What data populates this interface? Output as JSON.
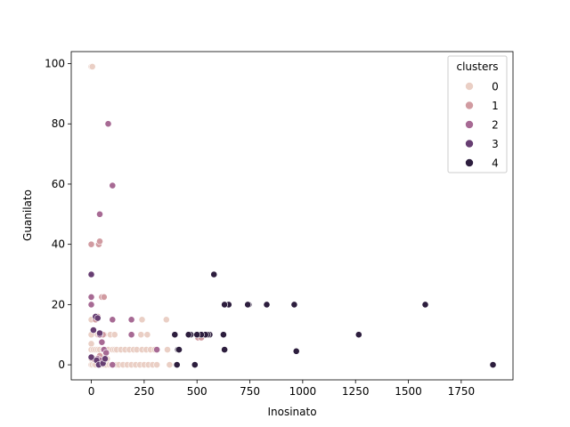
{
  "chart_data": {
    "type": "scatter",
    "title": "",
    "xlabel": "Inosinato",
    "ylabel": "Guanilato",
    "xlim": [
      -95,
      1995
    ],
    "ylim": [
      -5,
      104
    ],
    "xticks": [
      0,
      250,
      500,
      750,
      1000,
      1250,
      1500,
      1750
    ],
    "yticks": [
      0,
      20,
      40,
      60,
      80,
      100
    ],
    "grid": false,
    "legend": {
      "title": "clusters",
      "position": "top-right",
      "labels": [
        "0",
        "1",
        "2",
        "3",
        "4"
      ]
    },
    "series": [
      {
        "name": "0",
        "color": "#eacfc5",
        "points": [
          [
            0,
            99
          ],
          [
            5,
            99
          ],
          [
            0,
            15
          ],
          [
            0,
            10
          ],
          [
            0,
            7
          ],
          [
            0,
            5
          ],
          [
            0,
            2
          ],
          [
            0,
            0
          ],
          [
            5,
            0
          ],
          [
            10,
            2
          ],
          [
            10,
            5
          ],
          [
            15,
            0
          ],
          [
            20,
            5
          ],
          [
            20,
            0
          ],
          [
            25,
            2
          ],
          [
            30,
            5
          ],
          [
            30,
            10
          ],
          [
            35,
            0
          ],
          [
            40,
            5
          ],
          [
            45,
            0
          ],
          [
            50,
            3
          ],
          [
            55,
            5
          ],
          [
            60,
            10
          ],
          [
            60,
            0
          ],
          [
            65,
            5
          ],
          [
            70,
            0
          ],
          [
            75,
            2
          ],
          [
            80,
            5
          ],
          [
            85,
            0
          ],
          [
            90,
            10
          ],
          [
            95,
            0
          ],
          [
            100,
            5
          ],
          [
            100,
            0
          ],
          [
            110,
            10
          ],
          [
            110,
            5
          ],
          [
            120,
            0
          ],
          [
            120,
            5
          ],
          [
            130,
            0
          ],
          [
            140,
            5
          ],
          [
            150,
            0
          ],
          [
            160,
            5
          ],
          [
            170,
            0
          ],
          [
            180,
            5
          ],
          [
            190,
            0
          ],
          [
            200,
            5
          ],
          [
            210,
            0
          ],
          [
            215,
            5
          ],
          [
            230,
            0
          ],
          [
            235,
            10
          ],
          [
            240,
            15
          ],
          [
            240,
            5
          ],
          [
            250,
            0
          ],
          [
            260,
            5
          ],
          [
            265,
            10
          ],
          [
            270,
            0
          ],
          [
            280,
            5
          ],
          [
            290,
            0
          ],
          [
            300,
            5
          ],
          [
            310,
            0
          ],
          [
            355,
            15
          ],
          [
            360,
            5
          ],
          [
            370,
            0
          ]
        ]
      },
      {
        "name": "1",
        "color": "#d19ba1",
        "points": [
          [
            0,
            40
          ],
          [
            35,
            40
          ],
          [
            40,
            41
          ],
          [
            50,
            22.5
          ],
          [
            60,
            22.5
          ],
          [
            55,
            10
          ],
          [
            20,
            15
          ],
          [
            30,
            16
          ],
          [
            10,
            2
          ],
          [
            40,
            3
          ],
          [
            505,
            9
          ],
          [
            520,
            9
          ]
        ]
      },
      {
        "name": "2",
        "color": "#a76a94",
        "points": [
          [
            80,
            80
          ],
          [
            100,
            59.5
          ],
          [
            40,
            50
          ],
          [
            0,
            22.5
          ],
          [
            0,
            20
          ],
          [
            100,
            15
          ],
          [
            190,
            15
          ],
          [
            190,
            10
          ],
          [
            40,
            10
          ],
          [
            50,
            7.5
          ],
          [
            60,
            5
          ],
          [
            70,
            4
          ],
          [
            30,
            2
          ],
          [
            45,
            1.5
          ],
          [
            310,
            5
          ],
          [
            100,
            0
          ]
        ]
      },
      {
        "name": "3",
        "color": "#673e72",
        "points": [
          [
            0,
            30
          ],
          [
            0,
            2.5
          ],
          [
            10,
            11.5
          ],
          [
            40,
            10.5
          ],
          [
            25,
            1.5
          ],
          [
            35,
            0
          ],
          [
            55,
            0.5
          ],
          [
            65,
            2
          ],
          [
            20,
            16
          ],
          [
            30,
            15.5
          ]
        ]
      },
      {
        "name": "4",
        "color": "#2d1e3e",
        "points": [
          [
            1900,
            0
          ],
          [
            1580,
            20
          ],
          [
            1265,
            10
          ],
          [
            970,
            4.5
          ],
          [
            960,
            20
          ],
          [
            830,
            20
          ],
          [
            745,
            20
          ],
          [
            740,
            20
          ],
          [
            650,
            20
          ],
          [
            630,
            20
          ],
          [
            625,
            10
          ],
          [
            630,
            5
          ],
          [
            580,
            30
          ],
          [
            560,
            10
          ],
          [
            550,
            10
          ],
          [
            540,
            10
          ],
          [
            520,
            10
          ],
          [
            500,
            10
          ],
          [
            470,
            10
          ],
          [
            460,
            10
          ],
          [
            395,
            10
          ],
          [
            410,
            5
          ],
          [
            415,
            5
          ],
          [
            405,
            0
          ],
          [
            490,
            0
          ]
        ]
      }
    ]
  }
}
